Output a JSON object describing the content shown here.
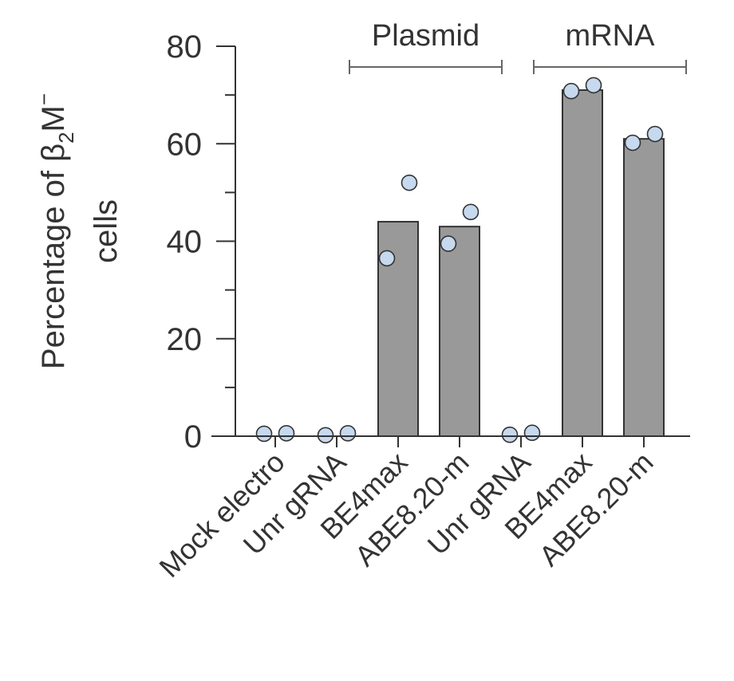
{
  "chart_data": {
    "type": "bar",
    "ylabel": {
      "line1_prefix": "Percentage of β",
      "subscript": "2",
      "letter": "M",
      "superscript": "−",
      "line2": "cells"
    },
    "ylim": [
      0,
      80
    ],
    "yticks_major": [
      0,
      20,
      40,
      60,
      80
    ],
    "yticks_minor": [
      10,
      30,
      50,
      70
    ],
    "categories": [
      "Mock electro",
      "Unr gRNA",
      "BE4max",
      "ABE8.20-m",
      "Unr gRNA",
      "BE4max",
      "ABE8.20-m"
    ],
    "values": [
      0,
      0,
      44,
      43,
      0,
      71,
      61
    ],
    "points": [
      [
        0.5,
        0.6
      ],
      [
        0.2,
        0.6
      ],
      [
        36.5,
        52
      ],
      [
        39.5,
        46
      ],
      [
        0.3,
        0.7
      ],
      [
        70.8,
        72
      ],
      [
        60.2,
        62
      ]
    ],
    "groups": [
      {
        "label": "Plasmid",
        "from": 1,
        "to": 3
      },
      {
        "label": "mRNA",
        "from": 4,
        "to": 6
      }
    ],
    "colors": {
      "bar": "#999999",
      "bar_edge": "#333333",
      "point": "#c6d9ee",
      "point_edge": "#333333",
      "axis": "#333333"
    }
  }
}
